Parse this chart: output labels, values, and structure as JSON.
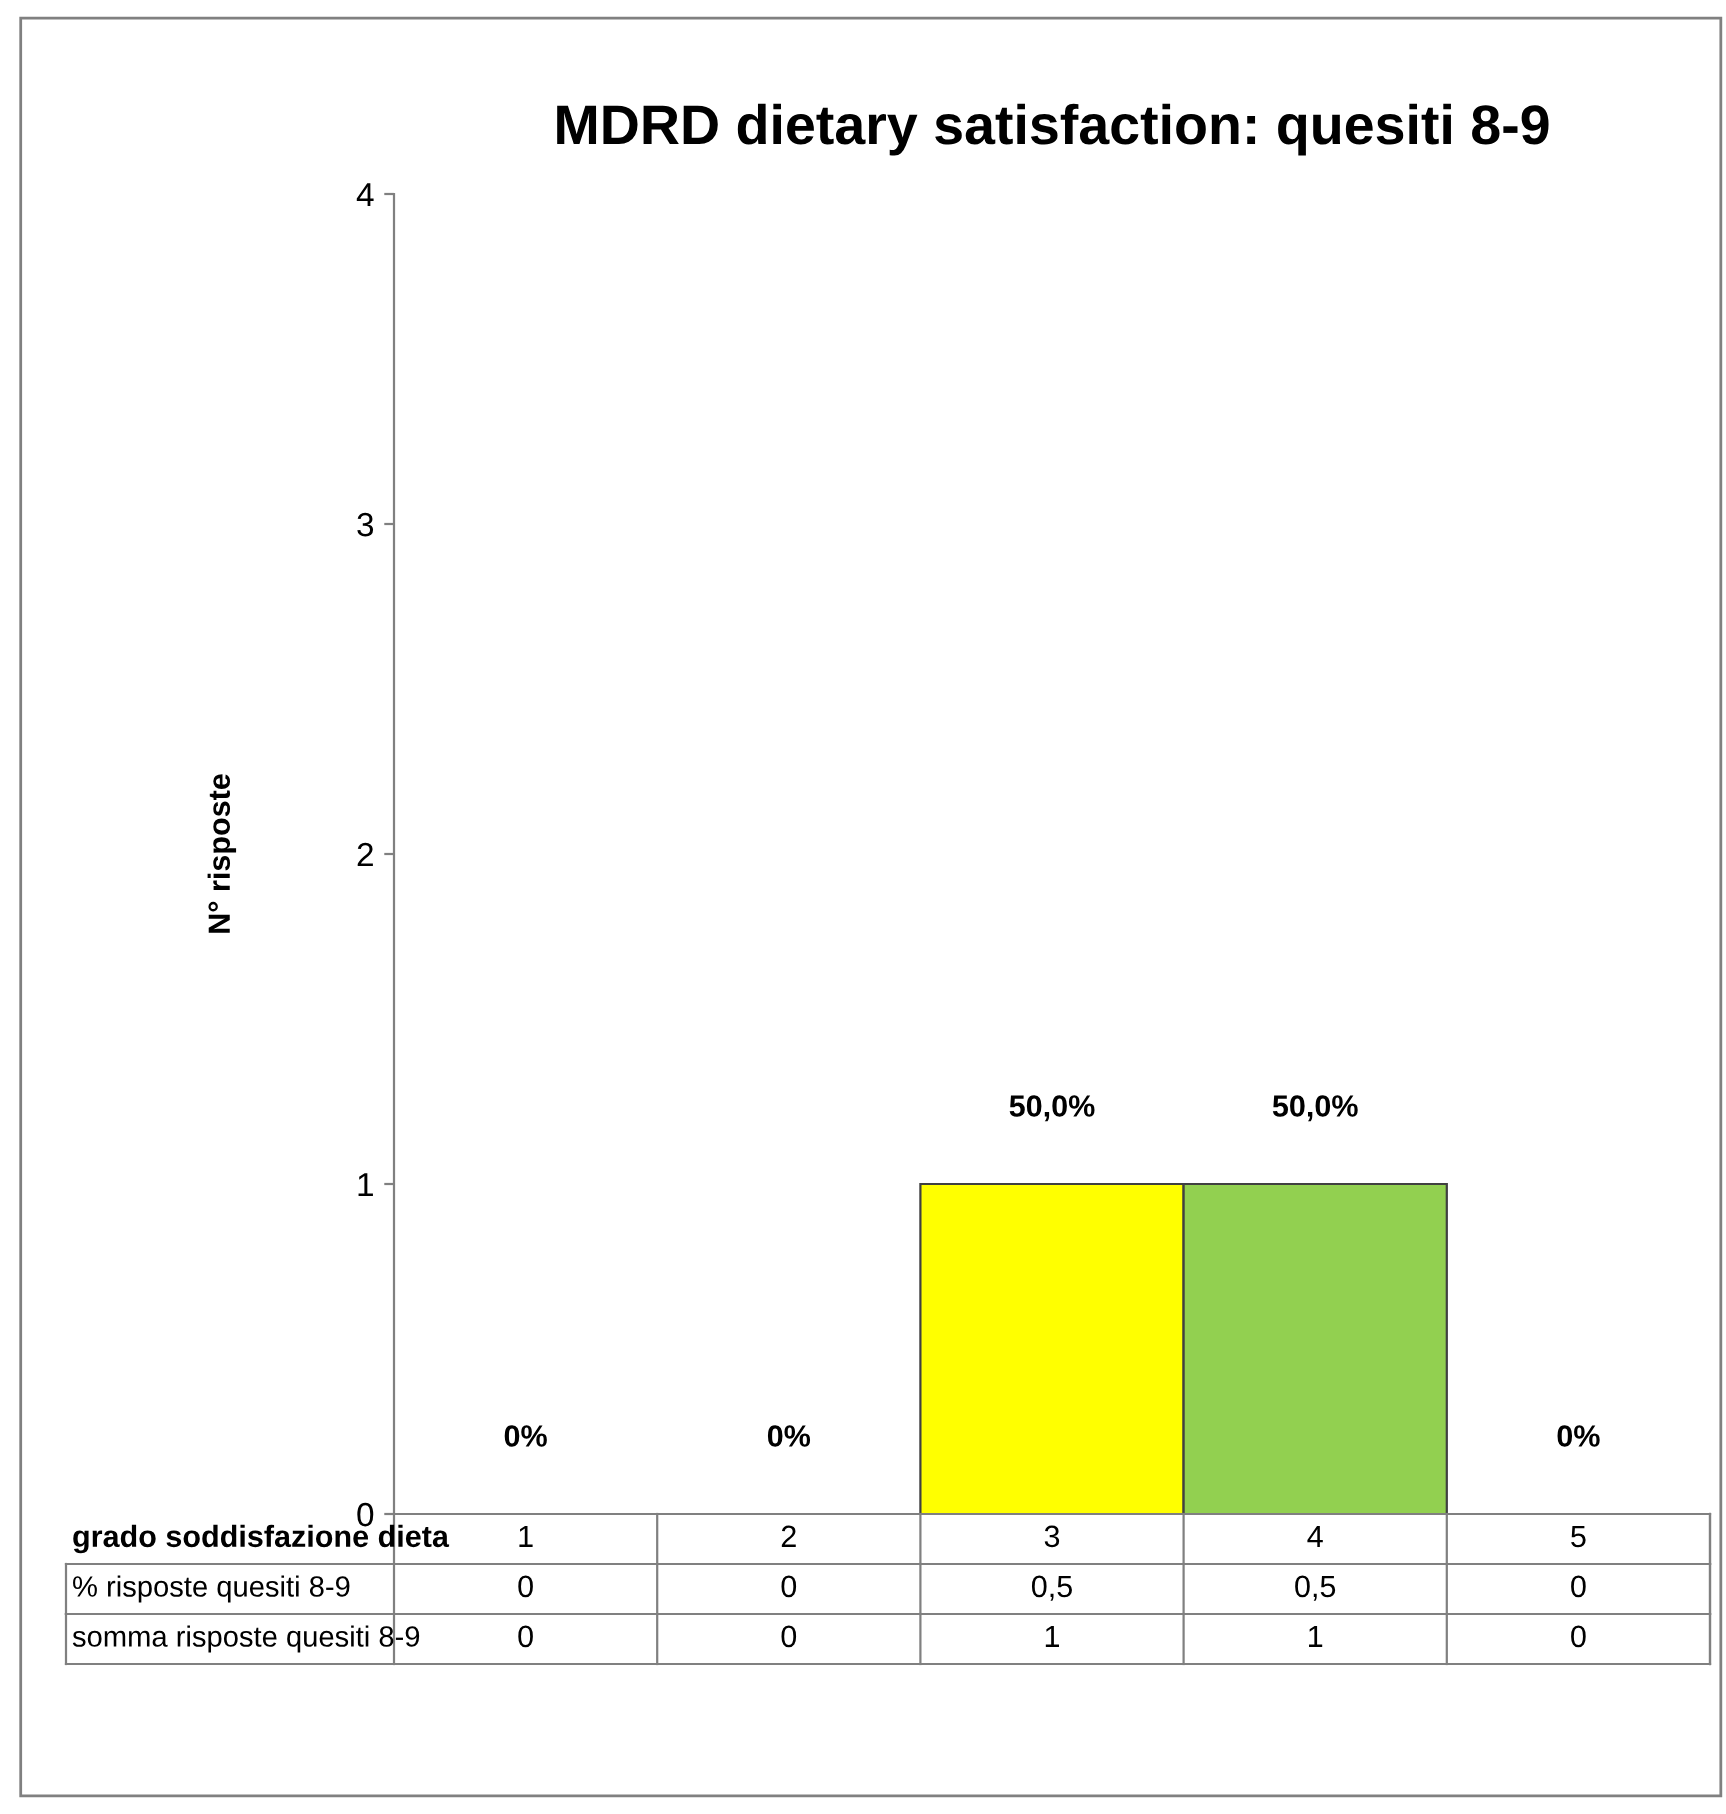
{
  "chart_data": {
    "type": "bar",
    "title": "MDRD dietary satisfaction: quesiti 8-9",
    "ylabel": "N° risposte",
    "xlabel": "grado soddisfazione dieta",
    "categories": [
      "1",
      "2",
      "3",
      "4",
      "5"
    ],
    "series": [
      {
        "name": "somma risposte quesiti 8-9",
        "values": [
          0,
          0,
          1,
          1,
          0
        ],
        "colors": [
          "#ffff00",
          "#ffff00",
          "#ffff00",
          "#92d050",
          "#92d050"
        ]
      }
    ],
    "annotations": [
      {
        "text": "0%",
        "x": "1",
        "y": 0
      },
      {
        "text": "0%",
        "x": "2",
        "y": 0
      },
      {
        "text": "50,0%",
        "x": "3",
        "y": 1
      },
      {
        "text": "50,0%",
        "x": "4",
        "y": 1
      },
      {
        "text": "0%",
        "x": "5",
        "y": 0
      },
      "% risposte quesiti 8-9",
      "0",
      "0",
      "0,5",
      "0,5",
      "0"
    ],
    "ylim": [
      0,
      4
    ],
    "yticks": [
      0,
      1,
      2,
      3,
      4
    ],
    "legend": "bottom",
    "data_labels": true
  }
}
